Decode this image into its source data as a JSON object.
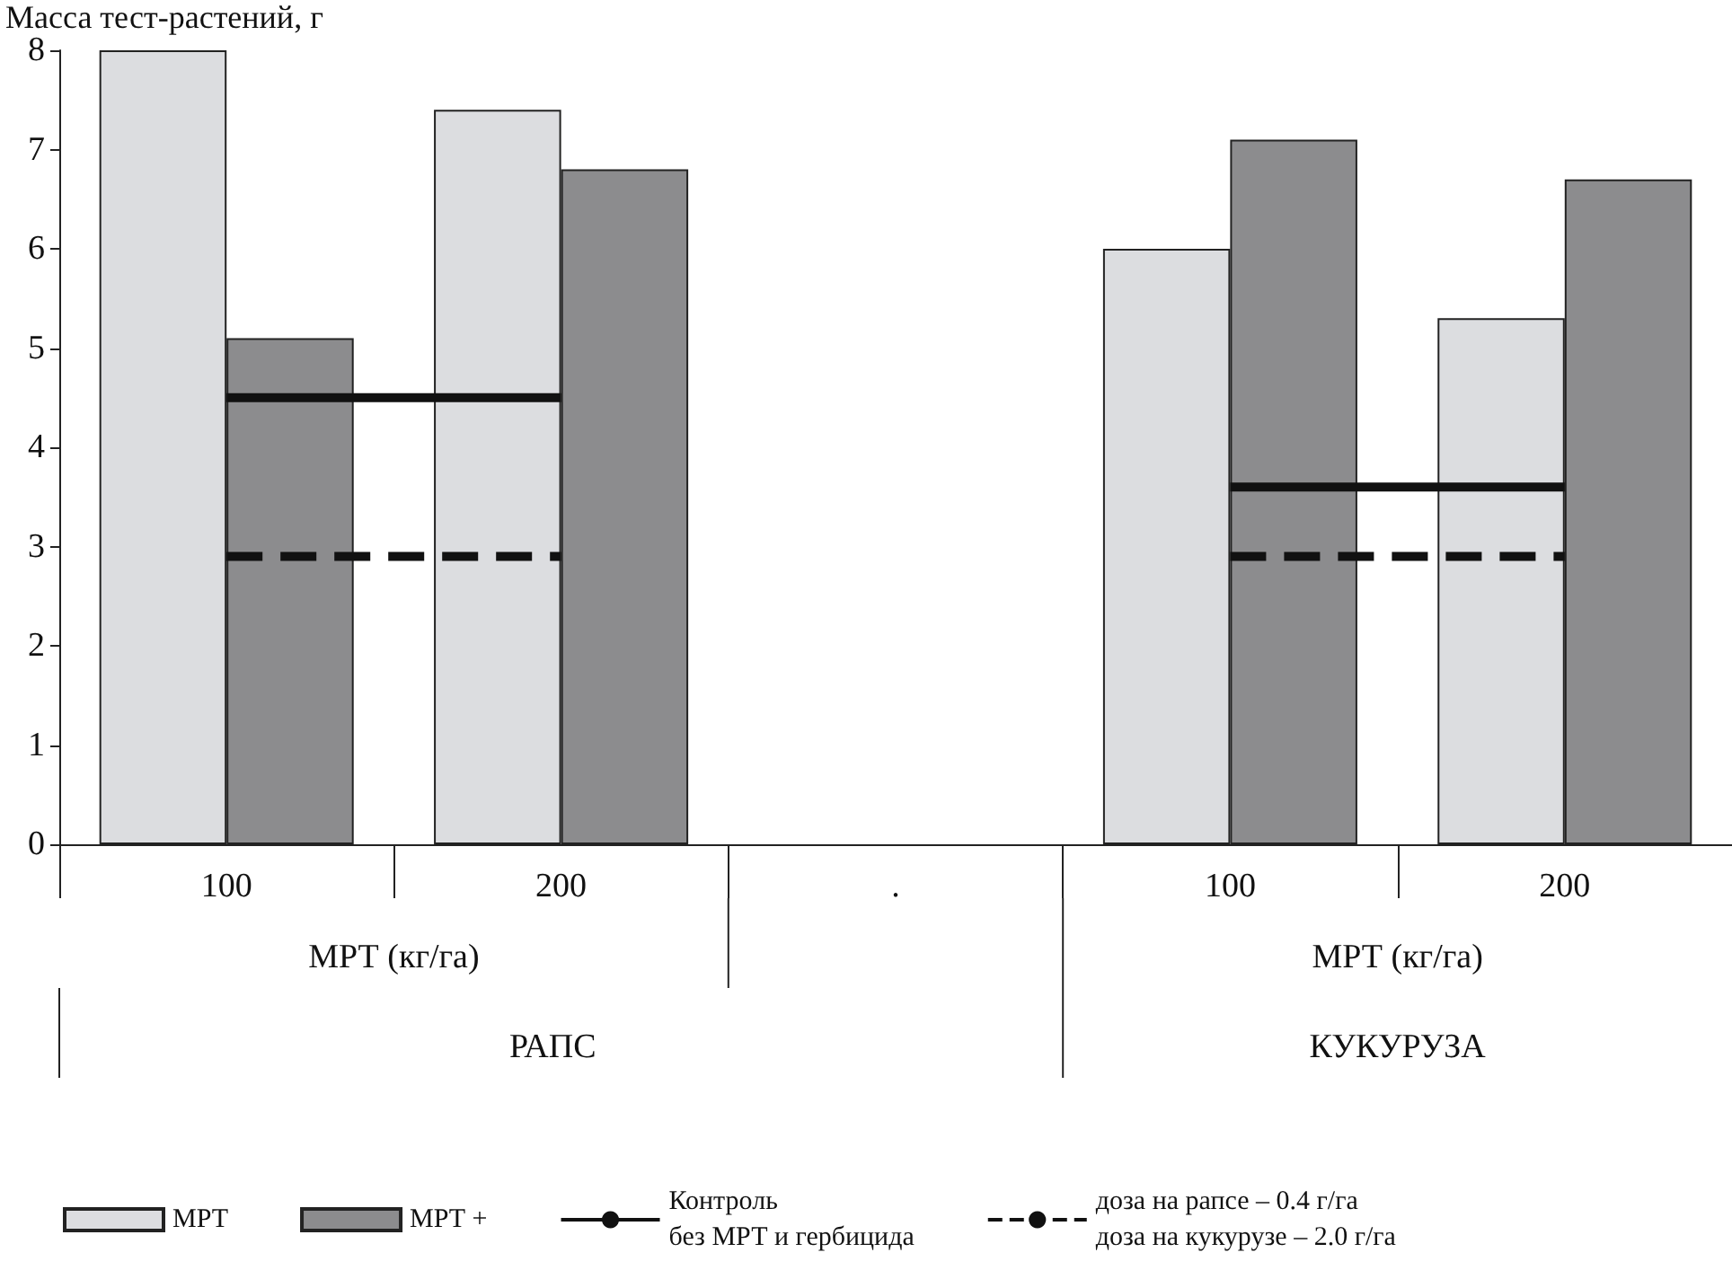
{
  "chart_data": {
    "type": "bar",
    "ylabel": "Масса тест-растений, г",
    "categories": [
      "100",
      "200",
      ".",
      "100",
      "200"
    ],
    "series": [
      {
        "name": "МРТ",
        "color": "#dcdde0",
        "values": [
          8,
          7.4,
          null,
          6.0,
          5.3
        ]
      },
      {
        "name": "МРТ +",
        "color": "#8c8c8e",
        "values": [
          5.1,
          6.8,
          null,
          7.1,
          6.7
        ]
      },
      {
        "name": "Контроль\nбез МРТ и гербицида",
        "type": "line",
        "color": "#111111",
        "line_style": "solid",
        "values": [
          4.5,
          4.5,
          null,
          3.6,
          3.6
        ]
      },
      {
        "name": "доза на рапсе – 0.4 г/га\nдоза на кукурузе – 2.0 г/га",
        "type": "line",
        "color": "#111111",
        "line_style": "dashed",
        "values": [
          2.9,
          2.9,
          null,
          2.9,
          2.9
        ]
      }
    ],
    "annotations": [
      "МРТ (кг/га)",
      "МРТ (кг/га)",
      "РАПС",
      "КУКУРУЗА"
    ],
    "ylim": [
      0,
      8
    ],
    "yticks": [
      0,
      1,
      2,
      3,
      4,
      5,
      6,
      7,
      8
    ],
    "grid": false,
    "legend": "bottom",
    "marker": "none"
  }
}
